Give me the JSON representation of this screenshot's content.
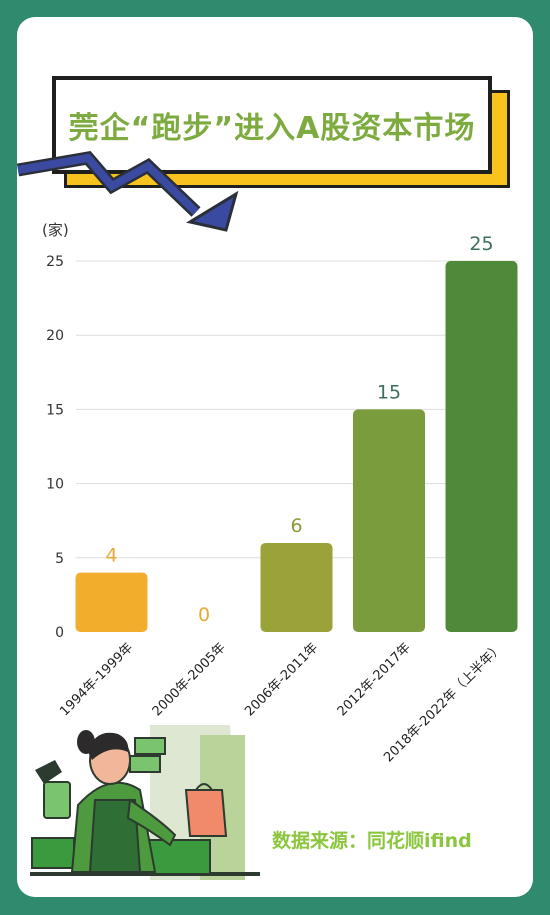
{
  "title": "莞企“跑步”进入A股资本市场",
  "source": "数据来源：同花顺ifind",
  "chart_data": {
    "type": "bar",
    "ylabel": "(家)",
    "ylim": [
      0,
      25
    ],
    "yticks": [
      0,
      5,
      10,
      15,
      20,
      25
    ],
    "grid": true,
    "categories": [
      "1994年-1999年",
      "2000年-2005年",
      "2006年-2011年",
      "2012年-2017年",
      "2018年-2022年（上半年）"
    ],
    "values": [
      4,
      0,
      6,
      15,
      25
    ],
    "colors": [
      "#f2ad2d",
      "#f2ad2d",
      "#9aa33a",
      "#7b9c3c",
      "#4f8a3a"
    ],
    "label_colors": [
      "#e9a93a",
      "#e9a93a",
      "#8a9a3a",
      "#3e6f5a",
      "#3e6f5a"
    ]
  }
}
